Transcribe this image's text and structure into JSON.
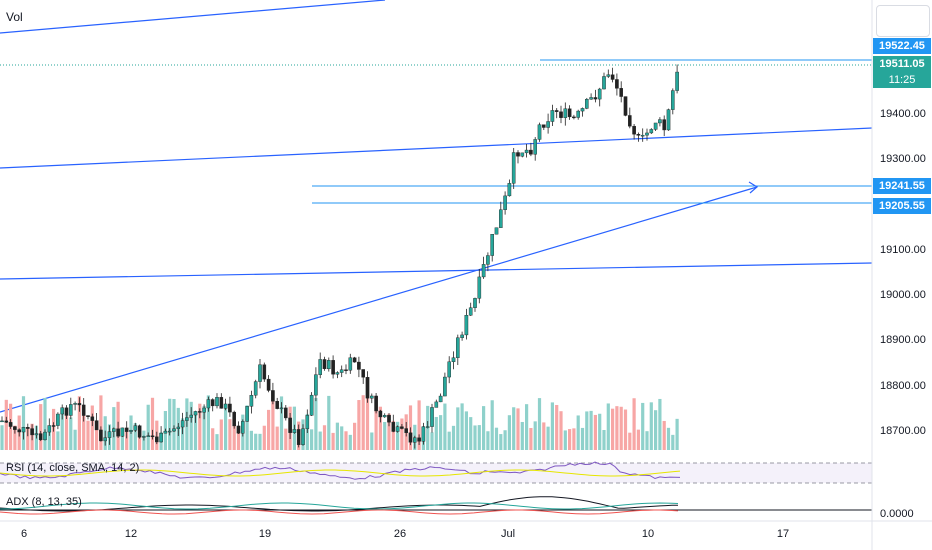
{
  "pane_labels": {
    "volume": "Vol",
    "rsi": "RSI (14, close, SMA, 14, 2)",
    "adx": "ADX (8, 13, 35)"
  },
  "price_axis": {
    "ticks": [
      "19400.00",
      "19300.00",
      "19100.00",
      "19000.00",
      "18900.00",
      "18800.00",
      "18700.00"
    ],
    "adx_tick": "0.0000"
  },
  "price_labels": {
    "level_1": "19522.45",
    "last_price": "19511.05",
    "countdown": "11:25",
    "level_2": "19241.55",
    "level_3": "19205.55"
  },
  "date_axis": [
    "6",
    "12",
    "19",
    "26",
    "Jul",
    "10",
    "17"
  ],
  "colors": {
    "up": "#26a69a",
    "down": "#ef5350",
    "trendline": "#2962ff",
    "level_line": "#2196f3",
    "price_box_blue": "#2196f3",
    "price_box_green": "#26a69a",
    "volume_up": "#8fd1cb",
    "volume_down": "#f7a6a5"
  }
}
